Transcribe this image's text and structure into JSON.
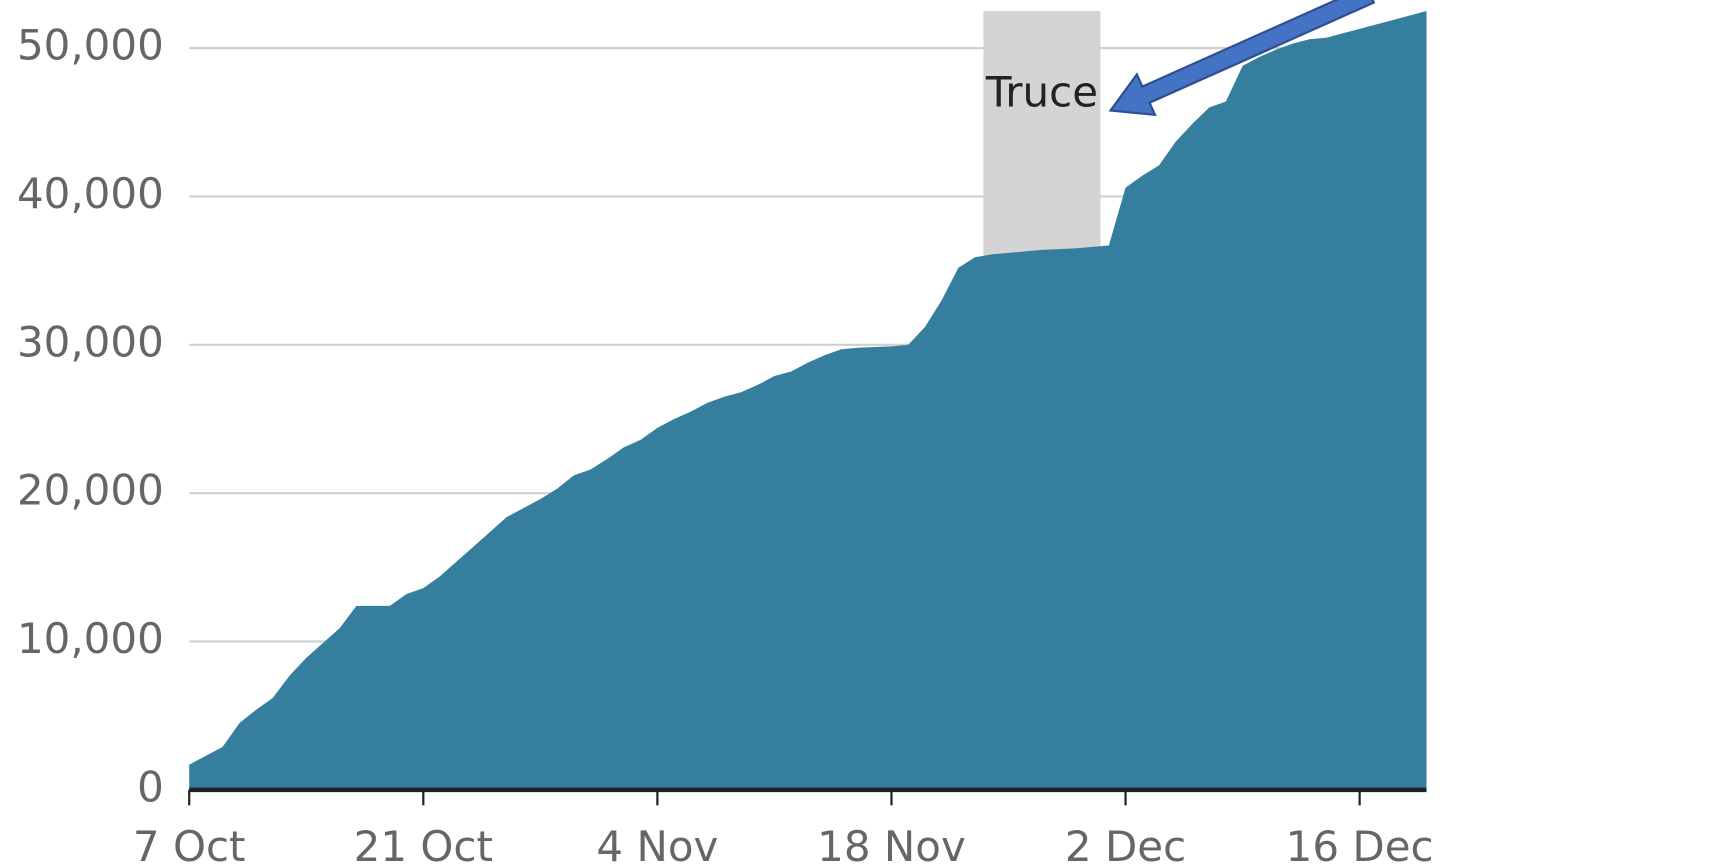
{
  "chart_data": {
    "type": "area",
    "categories": [
      "7 Oct",
      null,
      null,
      null,
      null,
      null,
      null,
      null,
      null,
      null,
      null,
      null,
      null,
      null,
      "21 Oct",
      null,
      null,
      null,
      null,
      null,
      null,
      null,
      null,
      null,
      null,
      null,
      null,
      null,
      "4 Nov",
      null,
      null,
      null,
      null,
      null,
      null,
      null,
      null,
      null,
      null,
      null,
      null,
      null,
      "18 Nov",
      null,
      null,
      null,
      null,
      null,
      null,
      null,
      null,
      null,
      null,
      null,
      null,
      null,
      "2 Dec",
      null,
      null,
      null,
      null,
      null,
      null,
      null,
      null,
      null,
      null,
      null,
      null,
      null,
      "16 Dec",
      null,
      null,
      null,
      null
    ],
    "series": [
      {
        "color": "#357e9e",
        "values": [
          1700,
          2300,
          2900,
          4500,
          5400,
          6200,
          7700,
          8900,
          9900,
          10900,
          12400,
          12400,
          12400,
          13200,
          13600,
          14400,
          15400,
          16400,
          17400,
          18400,
          19000,
          19600,
          20300,
          21200,
          21600,
          22300,
          23100,
          23600,
          24400,
          25000,
          25500,
          26100,
          26500,
          26800,
          27300,
          27900,
          28200,
          28800,
          29300,
          29700,
          29800,
          29850,
          29900,
          30000,
          31200,
          33000,
          35200,
          35900,
          36100,
          36200,
          36300,
          36400,
          36450,
          36500,
          36600,
          36700,
          40600,
          41400,
          42100,
          43700,
          44900,
          46000,
          46400,
          48800,
          49400,
          49900,
          50300,
          50600,
          50700,
          51000,
          51300,
          51600,
          51900,
          52200,
          52500
        ]
      }
    ],
    "ylim": [
      0,
      52500
    ],
    "yticks": [
      0,
      {
        "value": 10000,
        "label": "10,000"
      },
      {
        "value": 20000,
        "label": "20,000"
      },
      {
        "value": 30000,
        "label": "30,000"
      },
      {
        "value": 40000,
        "label": "40,000"
      },
      {
        "value": 50000,
        "label": "50,000"
      }
    ],
    "grid": true,
    "shade": {
      "label": "Truce",
      "from": 47.5,
      "to": 54.5,
      "color": "#d4d4d4"
    }
  }
}
